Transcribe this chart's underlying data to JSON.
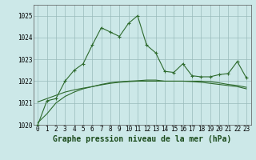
{
  "title": "Graphe pression niveau de la mer (hPa)",
  "x_labels": [
    "0",
    "1",
    "2",
    "3",
    "4",
    "5",
    "6",
    "7",
    "8",
    "9",
    "10",
    "11",
    "12",
    "13",
    "14",
    "15",
    "16",
    "17",
    "18",
    "19",
    "20",
    "21",
    "22",
    "23"
  ],
  "ylim": [
    1020,
    1025.5
  ],
  "yticks": [
    1020,
    1021,
    1022,
    1023,
    1024,
    1025
  ],
  "line1_y": [
    1020.0,
    1021.1,
    1021.2,
    1022.0,
    1022.5,
    1022.8,
    1023.65,
    1024.45,
    1024.25,
    1024.05,
    1024.65,
    1025.0,
    1023.65,
    1023.3,
    1022.45,
    1022.4,
    1022.8,
    1022.25,
    1022.2,
    1022.2,
    1022.3,
    1022.35,
    1022.9,
    1022.15
  ],
  "line2_y": [
    1020.1,
    1020.5,
    1021.0,
    1021.3,
    1021.5,
    1021.65,
    1021.75,
    1021.85,
    1021.93,
    1021.97,
    1022.0,
    1022.02,
    1022.05,
    1022.05,
    1022.0,
    1022.0,
    1022.0,
    1022.0,
    1022.0,
    1021.98,
    1021.92,
    1021.85,
    1021.8,
    1021.72
  ],
  "line3_y": [
    1021.05,
    1021.2,
    1021.35,
    1021.5,
    1021.6,
    1021.68,
    1021.75,
    1021.83,
    1021.9,
    1021.95,
    1021.98,
    1022.0,
    1022.0,
    1022.0,
    1022.0,
    1022.0,
    1022.0,
    1021.98,
    1021.95,
    1021.9,
    1021.85,
    1021.8,
    1021.75,
    1021.65
  ],
  "bg_color": "#cce8e8",
  "line_color": "#2d6a2d",
  "grid_color": "#99bbbb",
  "title_fontsize": 7,
  "tick_fontsize": 5.5
}
